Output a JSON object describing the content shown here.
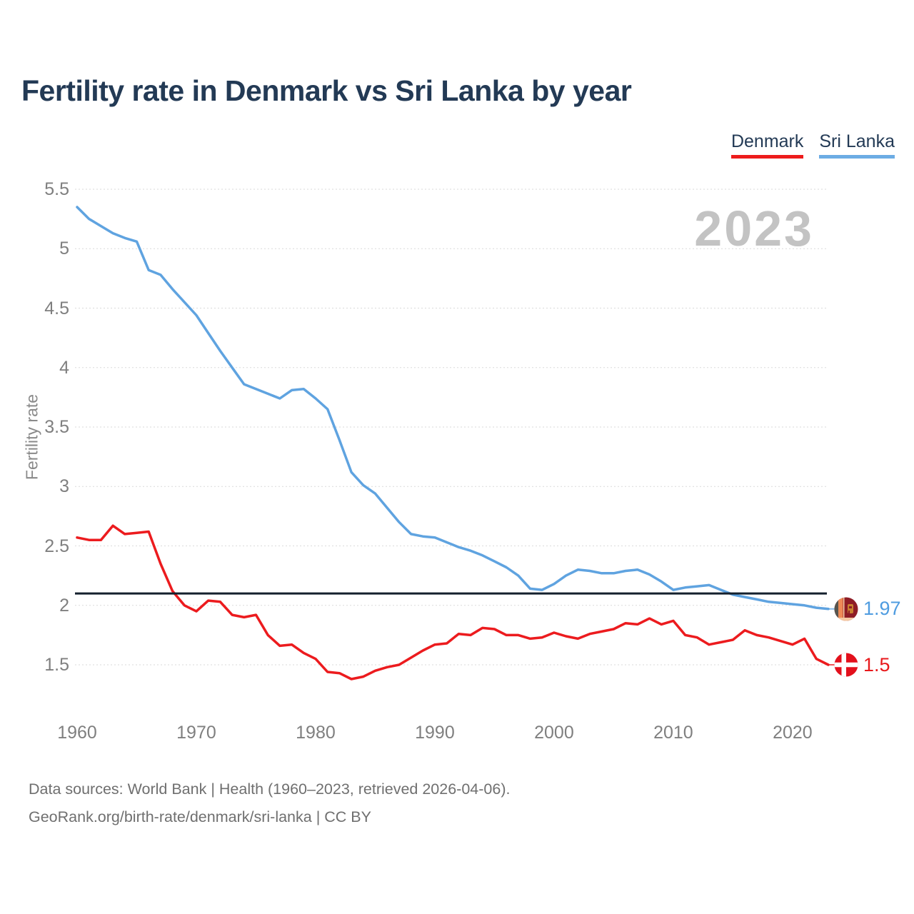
{
  "title": "Fertility rate in Denmark vs Sri Lanka by year",
  "watermark": "2023",
  "y_axis_title": "Fertility rate",
  "legend": {
    "denmark": {
      "label": "Denmark",
      "color": "#ed1c1c"
    },
    "sri_lanka": {
      "label": "Sri Lanka",
      "color": "#6cace4"
    }
  },
  "end_labels": {
    "sri_lanka": {
      "value": "1.97",
      "color": "#4f9ce0"
    },
    "denmark": {
      "value": "1.5",
      "color": "#e8191c"
    }
  },
  "footer": {
    "line1": "Data sources: World Bank | Health (1960–2023, retrieved 2026-04-06).",
    "line2": "GeoRank.org/birth-rate/denmark/sri-lanka | CC BY"
  },
  "chart_data": {
    "type": "line",
    "title": "Fertility rate in Denmark vs Sri Lanka by year",
    "xlabel": "",
    "ylabel": "Fertility rate",
    "x_start": 1960,
    "x_end": 2023,
    "x_ticks": [
      1960,
      1970,
      1980,
      1990,
      2000,
      2010,
      2020
    ],
    "y_ticks": [
      1.5,
      2,
      2.5,
      3,
      3.5,
      4,
      4.5,
      5,
      5.5
    ],
    "ylim": [
      1.5,
      5.5
    ],
    "grid": true,
    "legend_position": "top-right",
    "reference_line": 2.1,
    "reference_line_color": "#15202d",
    "grid_color": "#dadada",
    "series": [
      {
        "name": "Sri Lanka",
        "color": "#5fa3e0",
        "values": [
          5.35,
          5.25,
          5.19,
          5.13,
          5.09,
          5.06,
          4.82,
          4.78,
          4.66,
          4.55,
          4.44,
          4.29,
          4.14,
          4.0,
          3.86,
          3.82,
          3.78,
          3.74,
          3.81,
          3.82,
          3.74,
          3.65,
          3.39,
          3.12,
          3.01,
          2.94,
          2.82,
          2.7,
          2.6,
          2.58,
          2.57,
          2.53,
          2.49,
          2.46,
          2.42,
          2.37,
          2.32,
          2.25,
          2.14,
          2.13,
          2.18,
          2.25,
          2.3,
          2.29,
          2.27,
          2.27,
          2.29,
          2.3,
          2.26,
          2.2,
          2.13,
          2.15,
          2.16,
          2.17,
          2.13,
          2.09,
          2.07,
          2.05,
          2.03,
          2.02,
          2.01,
          2.0,
          1.98,
          1.97
        ]
      },
      {
        "name": "Denmark",
        "color": "#ec1b1e",
        "values": [
          2.57,
          2.55,
          2.55,
          2.67,
          2.6,
          2.61,
          2.62,
          2.35,
          2.12,
          2.0,
          1.95,
          2.04,
          2.03,
          1.92,
          1.9,
          1.92,
          1.75,
          1.66,
          1.67,
          1.6,
          1.55,
          1.44,
          1.43,
          1.38,
          1.4,
          1.45,
          1.48,
          1.5,
          1.56,
          1.62,
          1.67,
          1.68,
          1.76,
          1.75,
          1.81,
          1.8,
          1.75,
          1.75,
          1.72,
          1.73,
          1.77,
          1.74,
          1.72,
          1.76,
          1.78,
          1.8,
          1.85,
          1.84,
          1.89,
          1.84,
          1.87,
          1.75,
          1.73,
          1.67,
          1.69,
          1.71,
          1.79,
          1.75,
          1.73,
          1.7,
          1.67,
          1.72,
          1.55,
          1.5
        ]
      }
    ]
  }
}
